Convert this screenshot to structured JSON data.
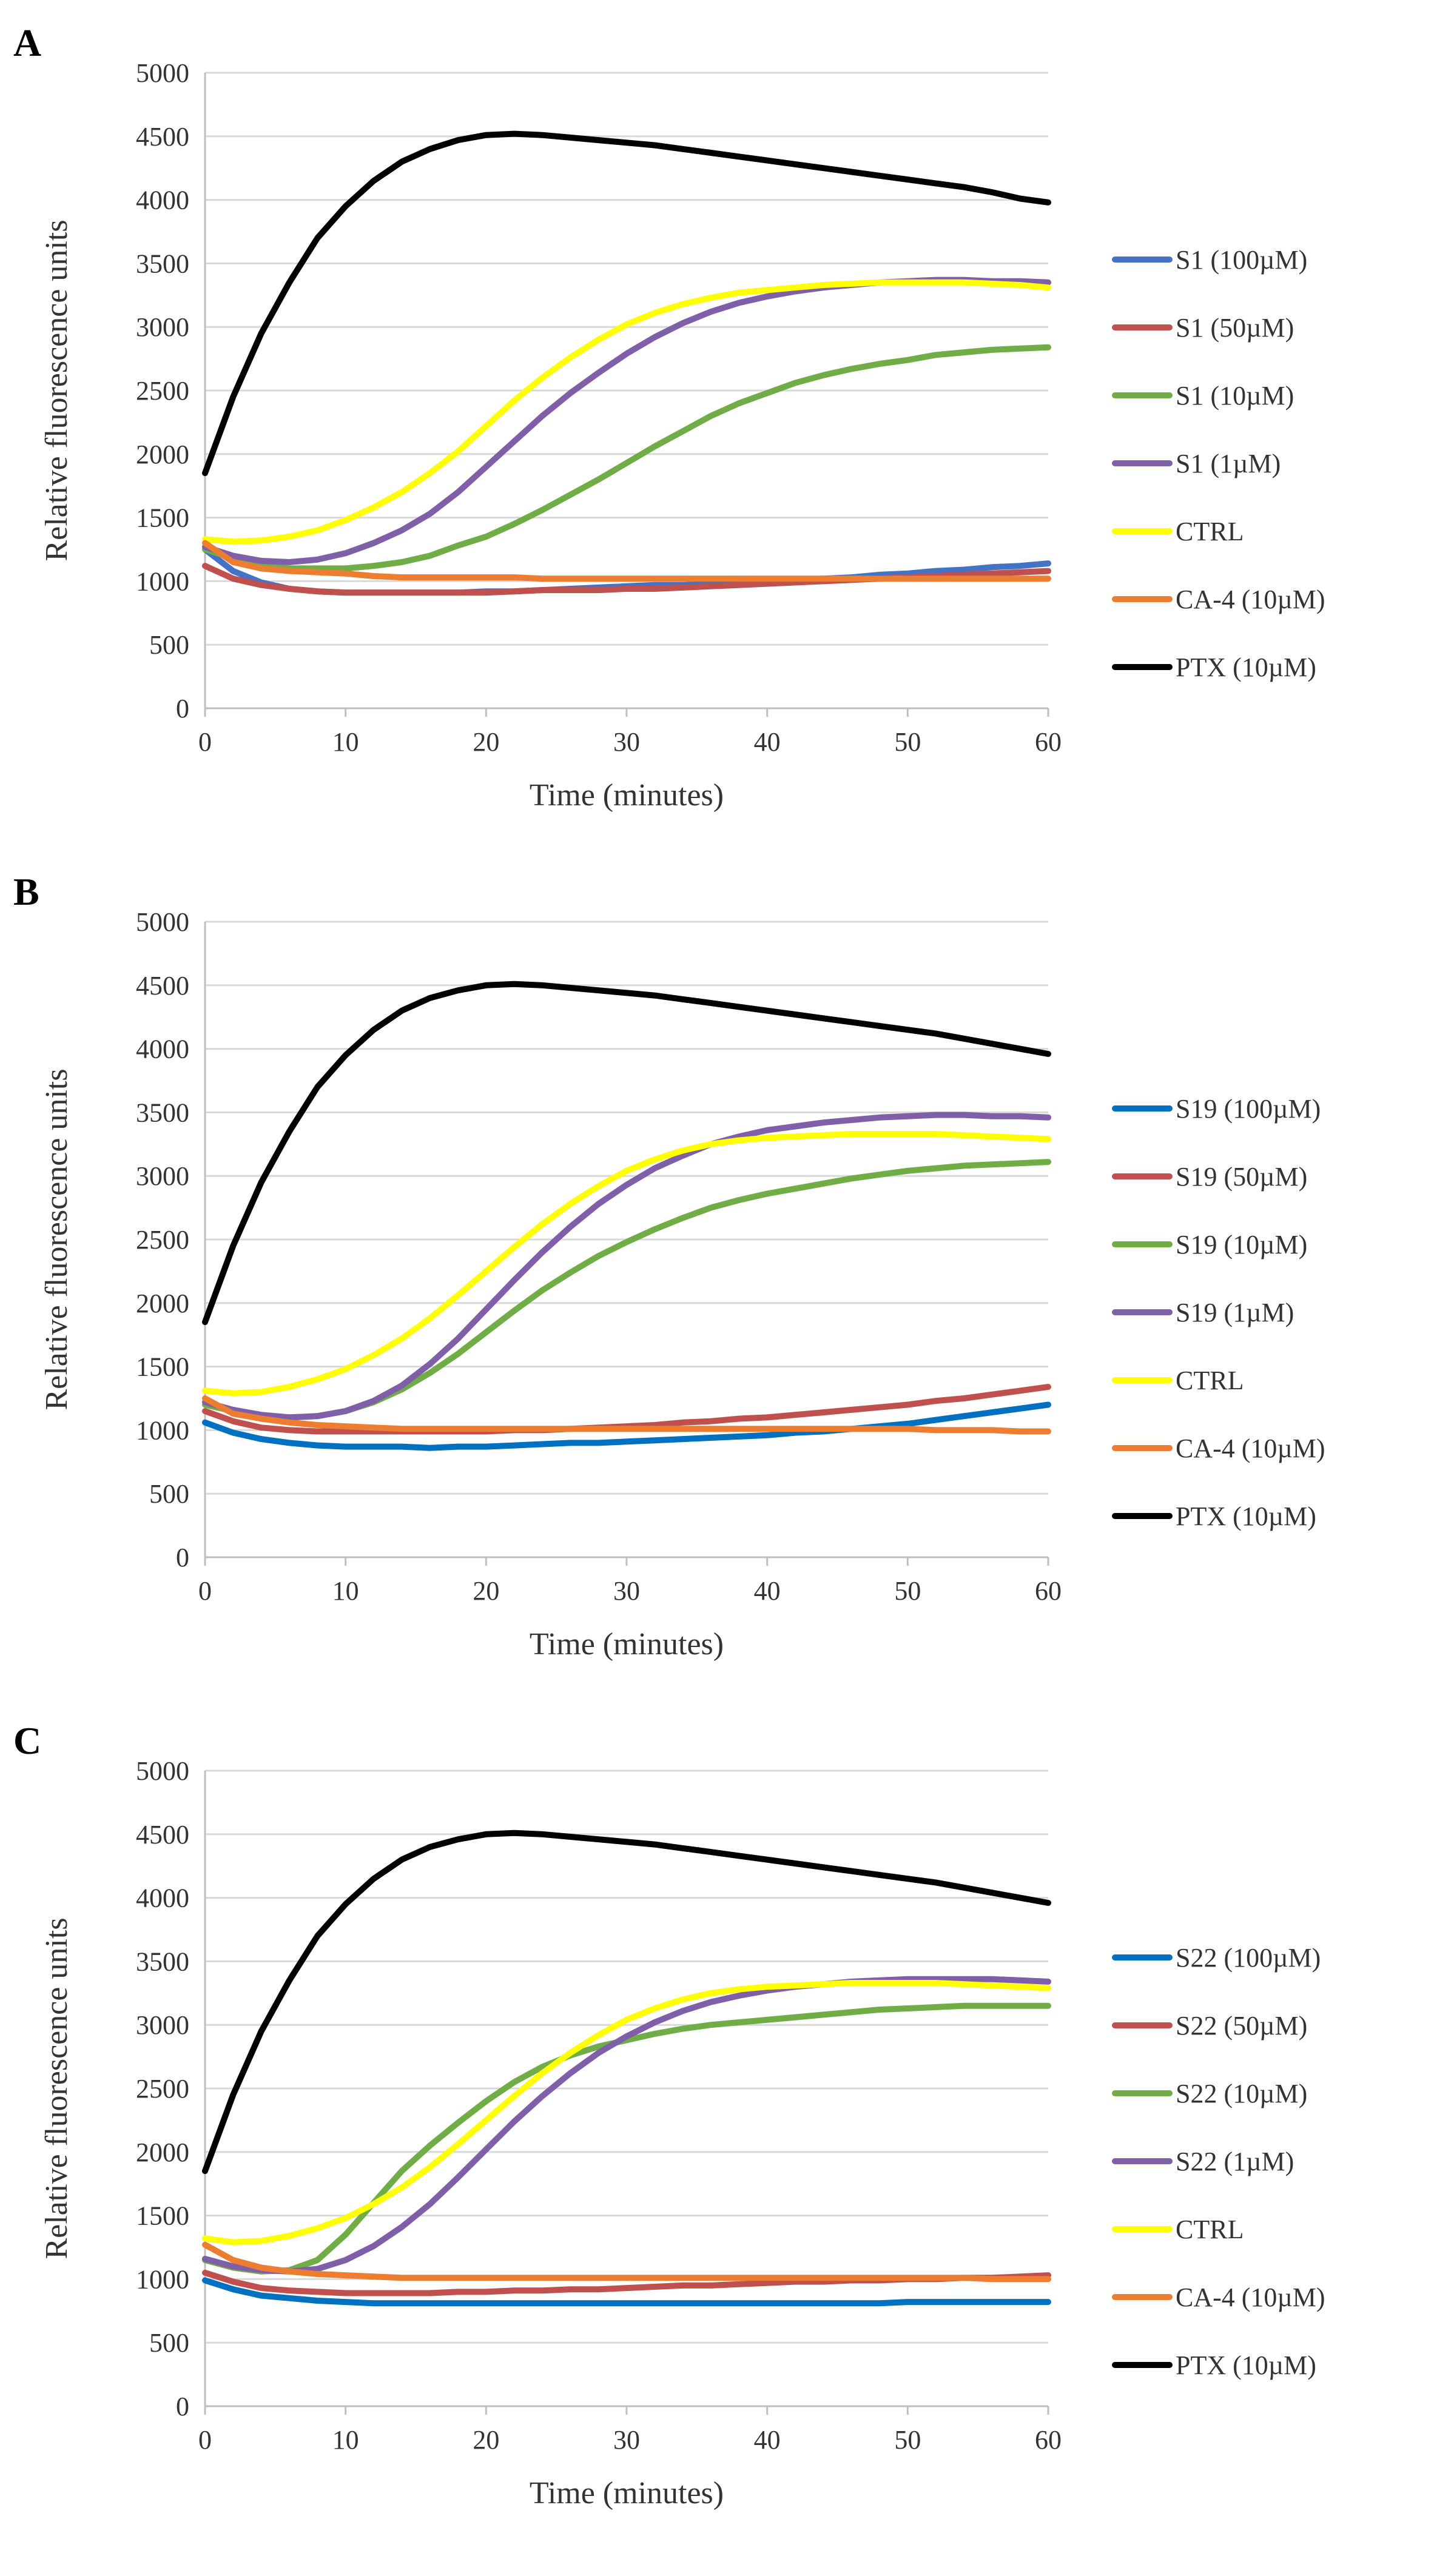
{
  "figure": {
    "panels": [
      {
        "letter": "A",
        "xlabel": "Time (minutes)",
        "ylabel": "Relative fluorescence units"
      },
      {
        "letter": "B",
        "xlabel": "Time (minutes)",
        "ylabel": "Relative fluorescence units"
      },
      {
        "letter": "C",
        "xlabel": "Time (minutes)",
        "ylabel": "Relative fluorescence units"
      }
    ]
  },
  "chart_data": [
    {
      "type": "line",
      "panel": "A",
      "title": "",
      "xlabel": "Time (minutes)",
      "ylabel": "Relative fluorescence units",
      "xlim": [
        0,
        60
      ],
      "ylim": [
        0,
        5000
      ],
      "xticks": [
        0,
        10,
        20,
        30,
        40,
        50,
        60
      ],
      "yticks": [
        0,
        500,
        1000,
        1500,
        2000,
        2500,
        3000,
        3500,
        4000,
        4500,
        5000
      ],
      "grid": true,
      "legend": "right",
      "x": [
        0,
        2,
        4,
        6,
        8,
        10,
        12,
        14,
        16,
        18,
        20,
        22,
        24,
        26,
        28,
        30,
        32,
        34,
        36,
        38,
        40,
        42,
        44,
        46,
        48,
        50,
        52,
        54,
        56,
        58,
        60
      ],
      "series": [
        {
          "name": "S1 (100µM)",
          "color": "#4472c4",
          "values": [
            1250,
            1080,
            990,
            940,
            920,
            910,
            910,
            910,
            910,
            910,
            920,
            920,
            930,
            940,
            950,
            960,
            970,
            970,
            980,
            990,
            1000,
            1010,
            1020,
            1030,
            1050,
            1060,
            1080,
            1090,
            1110,
            1120,
            1140
          ]
        },
        {
          "name": "S1 (50µM)",
          "color": "#c0504d",
          "values": [
            1120,
            1020,
            970,
            940,
            920,
            910,
            910,
            910,
            910,
            910,
            910,
            920,
            930,
            930,
            930,
            940,
            940,
            950,
            960,
            970,
            980,
            990,
            1000,
            1010,
            1020,
            1030,
            1040,
            1050,
            1060,
            1070,
            1080
          ]
        },
        {
          "name": "S1 (10µM)",
          "color": "#70ad47",
          "values": [
            1250,
            1180,
            1120,
            1100,
            1100,
            1100,
            1120,
            1150,
            1200,
            1280,
            1350,
            1450,
            1560,
            1680,
            1800,
            1930,
            2060,
            2180,
            2300,
            2400,
            2480,
            2560,
            2620,
            2670,
            2710,
            2740,
            2780,
            2800,
            2820,
            2830,
            2840
          ]
        },
        {
          "name": "S1 (1µM)",
          "color": "#7f5fa8",
          "values": [
            1270,
            1200,
            1160,
            1150,
            1170,
            1220,
            1300,
            1400,
            1530,
            1700,
            1900,
            2100,
            2300,
            2480,
            2640,
            2790,
            2920,
            3030,
            3120,
            3190,
            3240,
            3280,
            3310,
            3330,
            3350,
            3360,
            3370,
            3370,
            3360,
            3360,
            3350
          ]
        },
        {
          "name": "CTRL",
          "color": "#ffff00",
          "values": [
            1330,
            1310,
            1320,
            1350,
            1400,
            1480,
            1580,
            1700,
            1850,
            2020,
            2220,
            2420,
            2600,
            2760,
            2900,
            3020,
            3110,
            3180,
            3230,
            3270,
            3290,
            3310,
            3330,
            3340,
            3350,
            3350,
            3350,
            3350,
            3340,
            3330,
            3310
          ]
        },
        {
          "name": "CA-4 (10µM)",
          "color": "#ed7d31",
          "values": [
            1300,
            1150,
            1100,
            1080,
            1070,
            1060,
            1040,
            1030,
            1030,
            1030,
            1030,
            1030,
            1020,
            1020,
            1020,
            1020,
            1020,
            1020,
            1020,
            1020,
            1020,
            1020,
            1020,
            1020,
            1020,
            1020,
            1020,
            1020,
            1020,
            1020,
            1020
          ]
        },
        {
          "name": "PTX (10µM)",
          "color": "#000000",
          "values": [
            1850,
            2450,
            2950,
            3350,
            3700,
            3950,
            4150,
            4300,
            4400,
            4470,
            4510,
            4520,
            4510,
            4490,
            4470,
            4450,
            4430,
            4400,
            4370,
            4340,
            4310,
            4280,
            4250,
            4220,
            4190,
            4160,
            4130,
            4100,
            4060,
            4010,
            3980
          ]
        }
      ]
    },
    {
      "type": "line",
      "panel": "B",
      "title": "",
      "xlabel": "Time (minutes)",
      "ylabel": "Relative fluorescence units",
      "xlim": [
        0,
        60
      ],
      "ylim": [
        0,
        5000
      ],
      "xticks": [
        0,
        10,
        20,
        30,
        40,
        50,
        60
      ],
      "yticks": [
        0,
        500,
        1000,
        1500,
        2000,
        2500,
        3000,
        3500,
        4000,
        4500,
        5000
      ],
      "grid": true,
      "legend": "right",
      "x": [
        0,
        2,
        4,
        6,
        8,
        10,
        12,
        14,
        16,
        18,
        20,
        22,
        24,
        26,
        28,
        30,
        32,
        34,
        36,
        38,
        40,
        42,
        44,
        46,
        48,
        50,
        52,
        54,
        56,
        58,
        60
      ],
      "series": [
        {
          "name": "S19 (100µM)",
          "color": "#0070c0",
          "values": [
            1060,
            980,
            930,
            900,
            880,
            870,
            870,
            870,
            860,
            870,
            870,
            880,
            890,
            900,
            900,
            910,
            920,
            930,
            940,
            950,
            960,
            980,
            990,
            1010,
            1030,
            1050,
            1080,
            1110,
            1140,
            1170,
            1200
          ]
        },
        {
          "name": "S19 (50µM)",
          "color": "#c0504d",
          "values": [
            1150,
            1070,
            1020,
            1000,
            990,
            990,
            990,
            990,
            990,
            990,
            990,
            1000,
            1000,
            1010,
            1020,
            1030,
            1040,
            1060,
            1070,
            1090,
            1100,
            1120,
            1140,
            1160,
            1180,
            1200,
            1230,
            1250,
            1280,
            1310,
            1340
          ]
        },
        {
          "name": "S19 (10µM)",
          "color": "#70ad47",
          "values": [
            1200,
            1150,
            1110,
            1100,
            1110,
            1150,
            1220,
            1320,
            1450,
            1600,
            1770,
            1940,
            2100,
            2240,
            2370,
            2480,
            2580,
            2670,
            2750,
            2810,
            2860,
            2900,
            2940,
            2980,
            3010,
            3040,
            3060,
            3080,
            3090,
            3100,
            3110
          ]
        },
        {
          "name": "S19 (1µM)",
          "color": "#7f5fa8",
          "values": [
            1220,
            1160,
            1120,
            1100,
            1110,
            1150,
            1230,
            1350,
            1520,
            1720,
            1950,
            2180,
            2400,
            2600,
            2780,
            2930,
            3060,
            3160,
            3250,
            3310,
            3360,
            3390,
            3420,
            3440,
            3460,
            3470,
            3480,
            3480,
            3470,
            3470,
            3460
          ]
        },
        {
          "name": "CTRL",
          "color": "#ffff00",
          "values": [
            1310,
            1290,
            1300,
            1340,
            1400,
            1480,
            1590,
            1720,
            1880,
            2060,
            2250,
            2440,
            2620,
            2780,
            2920,
            3040,
            3130,
            3200,
            3250,
            3280,
            3300,
            3310,
            3320,
            3330,
            3330,
            3330,
            3330,
            3320,
            3310,
            3300,
            3290
          ]
        },
        {
          "name": "CA-4 (10µM)",
          "color": "#ed7d31",
          "values": [
            1250,
            1130,
            1090,
            1060,
            1040,
            1030,
            1020,
            1010,
            1010,
            1010,
            1010,
            1010,
            1010,
            1010,
            1010,
            1010,
            1010,
            1010,
            1010,
            1010,
            1010,
            1010,
            1010,
            1010,
            1010,
            1010,
            1000,
            1000,
            1000,
            990,
            990
          ]
        },
        {
          "name": "PTX (10µM)",
          "color": "#000000",
          "values": [
            1850,
            2450,
            2950,
            3350,
            3700,
            3950,
            4150,
            4300,
            4400,
            4460,
            4500,
            4510,
            4500,
            4480,
            4460,
            4440,
            4420,
            4390,
            4360,
            4330,
            4300,
            4270,
            4240,
            4210,
            4180,
            4150,
            4120,
            4080,
            4040,
            4000,
            3960
          ]
        }
      ]
    },
    {
      "type": "line",
      "panel": "C",
      "title": "",
      "xlabel": "Time (minutes)",
      "ylabel": "Relative fluorescence units",
      "xlim": [
        0,
        60
      ],
      "ylim": [
        0,
        5000
      ],
      "xticks": [
        0,
        10,
        20,
        30,
        40,
        50,
        60
      ],
      "yticks": [
        0,
        500,
        1000,
        1500,
        2000,
        2500,
        3000,
        3500,
        4000,
        4500,
        5000
      ],
      "grid": true,
      "legend": "right",
      "x": [
        0,
        2,
        4,
        6,
        8,
        10,
        12,
        14,
        16,
        18,
        20,
        22,
        24,
        26,
        28,
        30,
        32,
        34,
        36,
        38,
        40,
        42,
        44,
        46,
        48,
        50,
        52,
        54,
        56,
        58,
        60
      ],
      "series": [
        {
          "name": "S22 (100µM)",
          "color": "#0070c0",
          "values": [
            990,
            920,
            870,
            850,
            830,
            820,
            810,
            810,
            810,
            810,
            810,
            810,
            810,
            810,
            810,
            810,
            810,
            810,
            810,
            810,
            810,
            810,
            810,
            810,
            810,
            820,
            820,
            820,
            820,
            820,
            820
          ]
        },
        {
          "name": "S22 (50µM)",
          "color": "#c0504d",
          "values": [
            1050,
            980,
            930,
            910,
            900,
            890,
            890,
            890,
            890,
            900,
            900,
            910,
            910,
            920,
            920,
            930,
            940,
            950,
            950,
            960,
            970,
            980,
            980,
            990,
            990,
            1000,
            1000,
            1010,
            1010,
            1020,
            1030
          ]
        },
        {
          "name": "S22 (10µM)",
          "color": "#70ad47",
          "values": [
            1150,
            1090,
            1060,
            1070,
            1150,
            1350,
            1600,
            1850,
            2050,
            2230,
            2400,
            2550,
            2670,
            2760,
            2830,
            2880,
            2930,
            2970,
            3000,
            3020,
            3040,
            3060,
            3080,
            3100,
            3120,
            3130,
            3140,
            3150,
            3150,
            3150,
            3150
          ]
        },
        {
          "name": "S22 (1µM)",
          "color": "#7f5fa8",
          "values": [
            1160,
            1100,
            1070,
            1060,
            1080,
            1150,
            1260,
            1410,
            1590,
            1800,
            2020,
            2240,
            2440,
            2620,
            2780,
            2910,
            3020,
            3110,
            3180,
            3230,
            3270,
            3300,
            3320,
            3340,
            3350,
            3360,
            3360,
            3360,
            3360,
            3350,
            3340
          ]
        },
        {
          "name": "CTRL",
          "color": "#ffff00",
          "values": [
            1320,
            1290,
            1300,
            1340,
            1400,
            1480,
            1590,
            1720,
            1880,
            2060,
            2250,
            2440,
            2620,
            2780,
            2920,
            3040,
            3130,
            3200,
            3250,
            3280,
            3300,
            3310,
            3320,
            3330,
            3330,
            3330,
            3330,
            3320,
            3310,
            3300,
            3290
          ]
        },
        {
          "name": "CA-4 (10µM)",
          "color": "#ed7d31",
          "values": [
            1270,
            1150,
            1090,
            1060,
            1040,
            1030,
            1020,
            1010,
            1010,
            1010,
            1010,
            1010,
            1010,
            1010,
            1010,
            1010,
            1010,
            1010,
            1010,
            1010,
            1010,
            1010,
            1010,
            1010,
            1010,
            1010,
            1010,
            1010,
            1000,
            1000,
            1000
          ]
        },
        {
          "name": "PTX (10µM)",
          "color": "#000000",
          "values": [
            1850,
            2450,
            2950,
            3350,
            3700,
            3950,
            4150,
            4300,
            4400,
            4460,
            4500,
            4510,
            4500,
            4480,
            4460,
            4440,
            4420,
            4390,
            4360,
            4330,
            4300,
            4270,
            4240,
            4210,
            4180,
            4150,
            4120,
            4080,
            4040,
            4000,
            3960
          ]
        }
      ]
    }
  ]
}
